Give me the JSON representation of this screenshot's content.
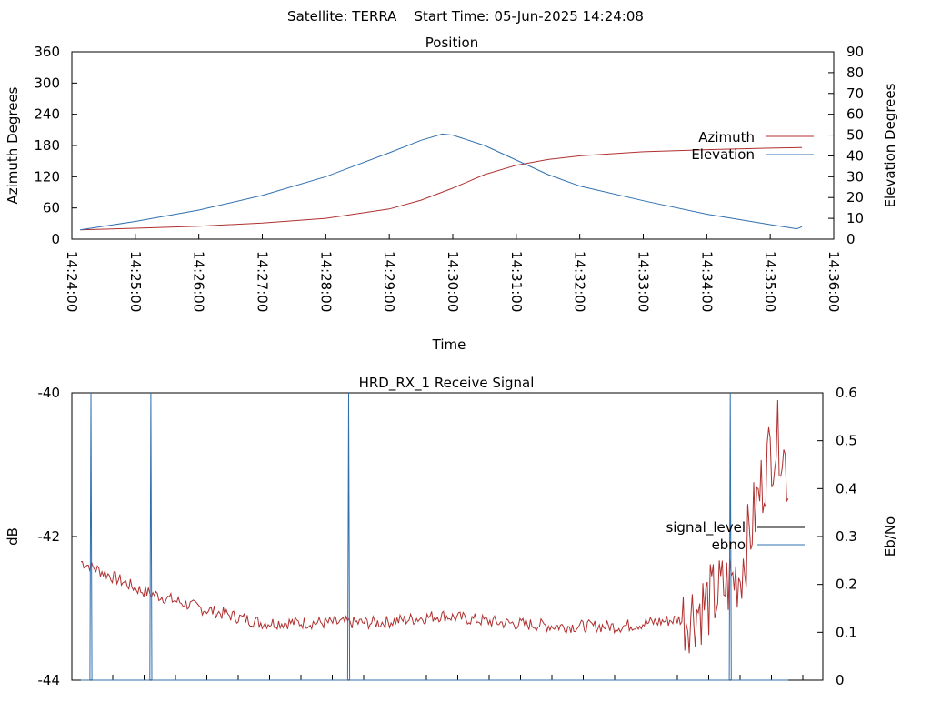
{
  "header": {
    "title": "Satellite: TERRA    Start Time: 05-Jun-2025 14:24:08"
  },
  "chart_data": [
    {
      "type": "line",
      "title": "Position",
      "xlabel": "Time",
      "ylabel_left": "Azimuth Degrees",
      "ylabel_right": "Elevation Degrees",
      "x_ticks": [
        "14:24:00",
        "14:25:00",
        "14:26:00",
        "14:27:00",
        "14:28:00",
        "14:29:00",
        "14:30:00",
        "14:31:00",
        "14:32:00",
        "14:33:00",
        "14:34:00",
        "14:35:00",
        "14:36:00"
      ],
      "ylim_left": [
        0,
        360
      ],
      "yticks_left": [
        0,
        60,
        120,
        180,
        240,
        300,
        360
      ],
      "ylim_right": [
        0,
        90
      ],
      "yticks_right": [
        0,
        10,
        20,
        30,
        40,
        50,
        60,
        70,
        80,
        90
      ],
      "legend_position": "right",
      "series": [
        {
          "name": "Azimuth",
          "axis": "left",
          "color": "#b03030",
          "x": [
            "14:24:08",
            "14:25:00",
            "14:26:00",
            "14:27:00",
            "14:28:00",
            "14:29:00",
            "14:29:30",
            "14:30:00",
            "14:30:30",
            "14:31:00",
            "14:31:30",
            "14:32:00",
            "14:33:00",
            "14:34:00",
            "14:35:00",
            "14:35:30"
          ],
          "y": [
            18,
            21,
            25,
            31,
            40,
            58,
            75,
            98,
            124,
            142,
            153,
            160,
            168,
            172,
            175,
            176
          ]
        },
        {
          "name": "Elevation",
          "axis": "right",
          "color": "#3070b0",
          "x": [
            "14:24:08",
            "14:25:00",
            "14:26:00",
            "14:27:00",
            "14:28:00",
            "14:29:00",
            "14:29:30",
            "14:29:50",
            "14:30:00",
            "14:30:30",
            "14:31:00",
            "14:31:30",
            "14:32:00",
            "14:33:00",
            "14:34:00",
            "14:35:00",
            "14:35:25",
            "14:35:30"
          ],
          "y": [
            4.5,
            8.5,
            14,
            21,
            30,
            41.5,
            47.5,
            50.5,
            50,
            45,
            38,
            31,
            25.5,
            18.5,
            12,
            7,
            5,
            6
          ]
        }
      ]
    },
    {
      "type": "line",
      "title": "HRD_RX_1 Receive Signal",
      "ylabel_left": "dB",
      "ylabel_right": "Eb/No",
      "ylim_left": [
        -44,
        -40
      ],
      "yticks_left": [
        -44,
        -42,
        -40
      ],
      "ylim_right": [
        0,
        0.6
      ],
      "yticks_right": [
        0,
        0.1,
        0.2,
        0.3,
        0.4,
        0.5,
        0.6
      ],
      "legend_position": "right",
      "series": [
        {
          "name": "signal_level",
          "axis": "left",
          "color": "#b03030",
          "x_seconds": [
            0,
            60,
            120,
            180,
            240,
            300,
            360,
            420,
            480,
            540,
            600,
            630,
            660,
            690,
            700,
            708
          ],
          "y": [
            -42.35,
            -42.75,
            -43.0,
            -43.2,
            -43.2,
            -43.2,
            -43.1,
            -43.2,
            -43.25,
            -43.25,
            -43.15,
            -42.9,
            -42.5,
            -40.8,
            -40.6,
            -41.2
          ]
        },
        {
          "name": "ebno",
          "axis": "right",
          "color": "#3070b0",
          "spikes_x_seconds": [
            10,
            70,
            268,
            650
          ],
          "spikes_y": [
            0.6,
            0.6,
            0.6,
            0.6
          ]
        }
      ]
    }
  ]
}
